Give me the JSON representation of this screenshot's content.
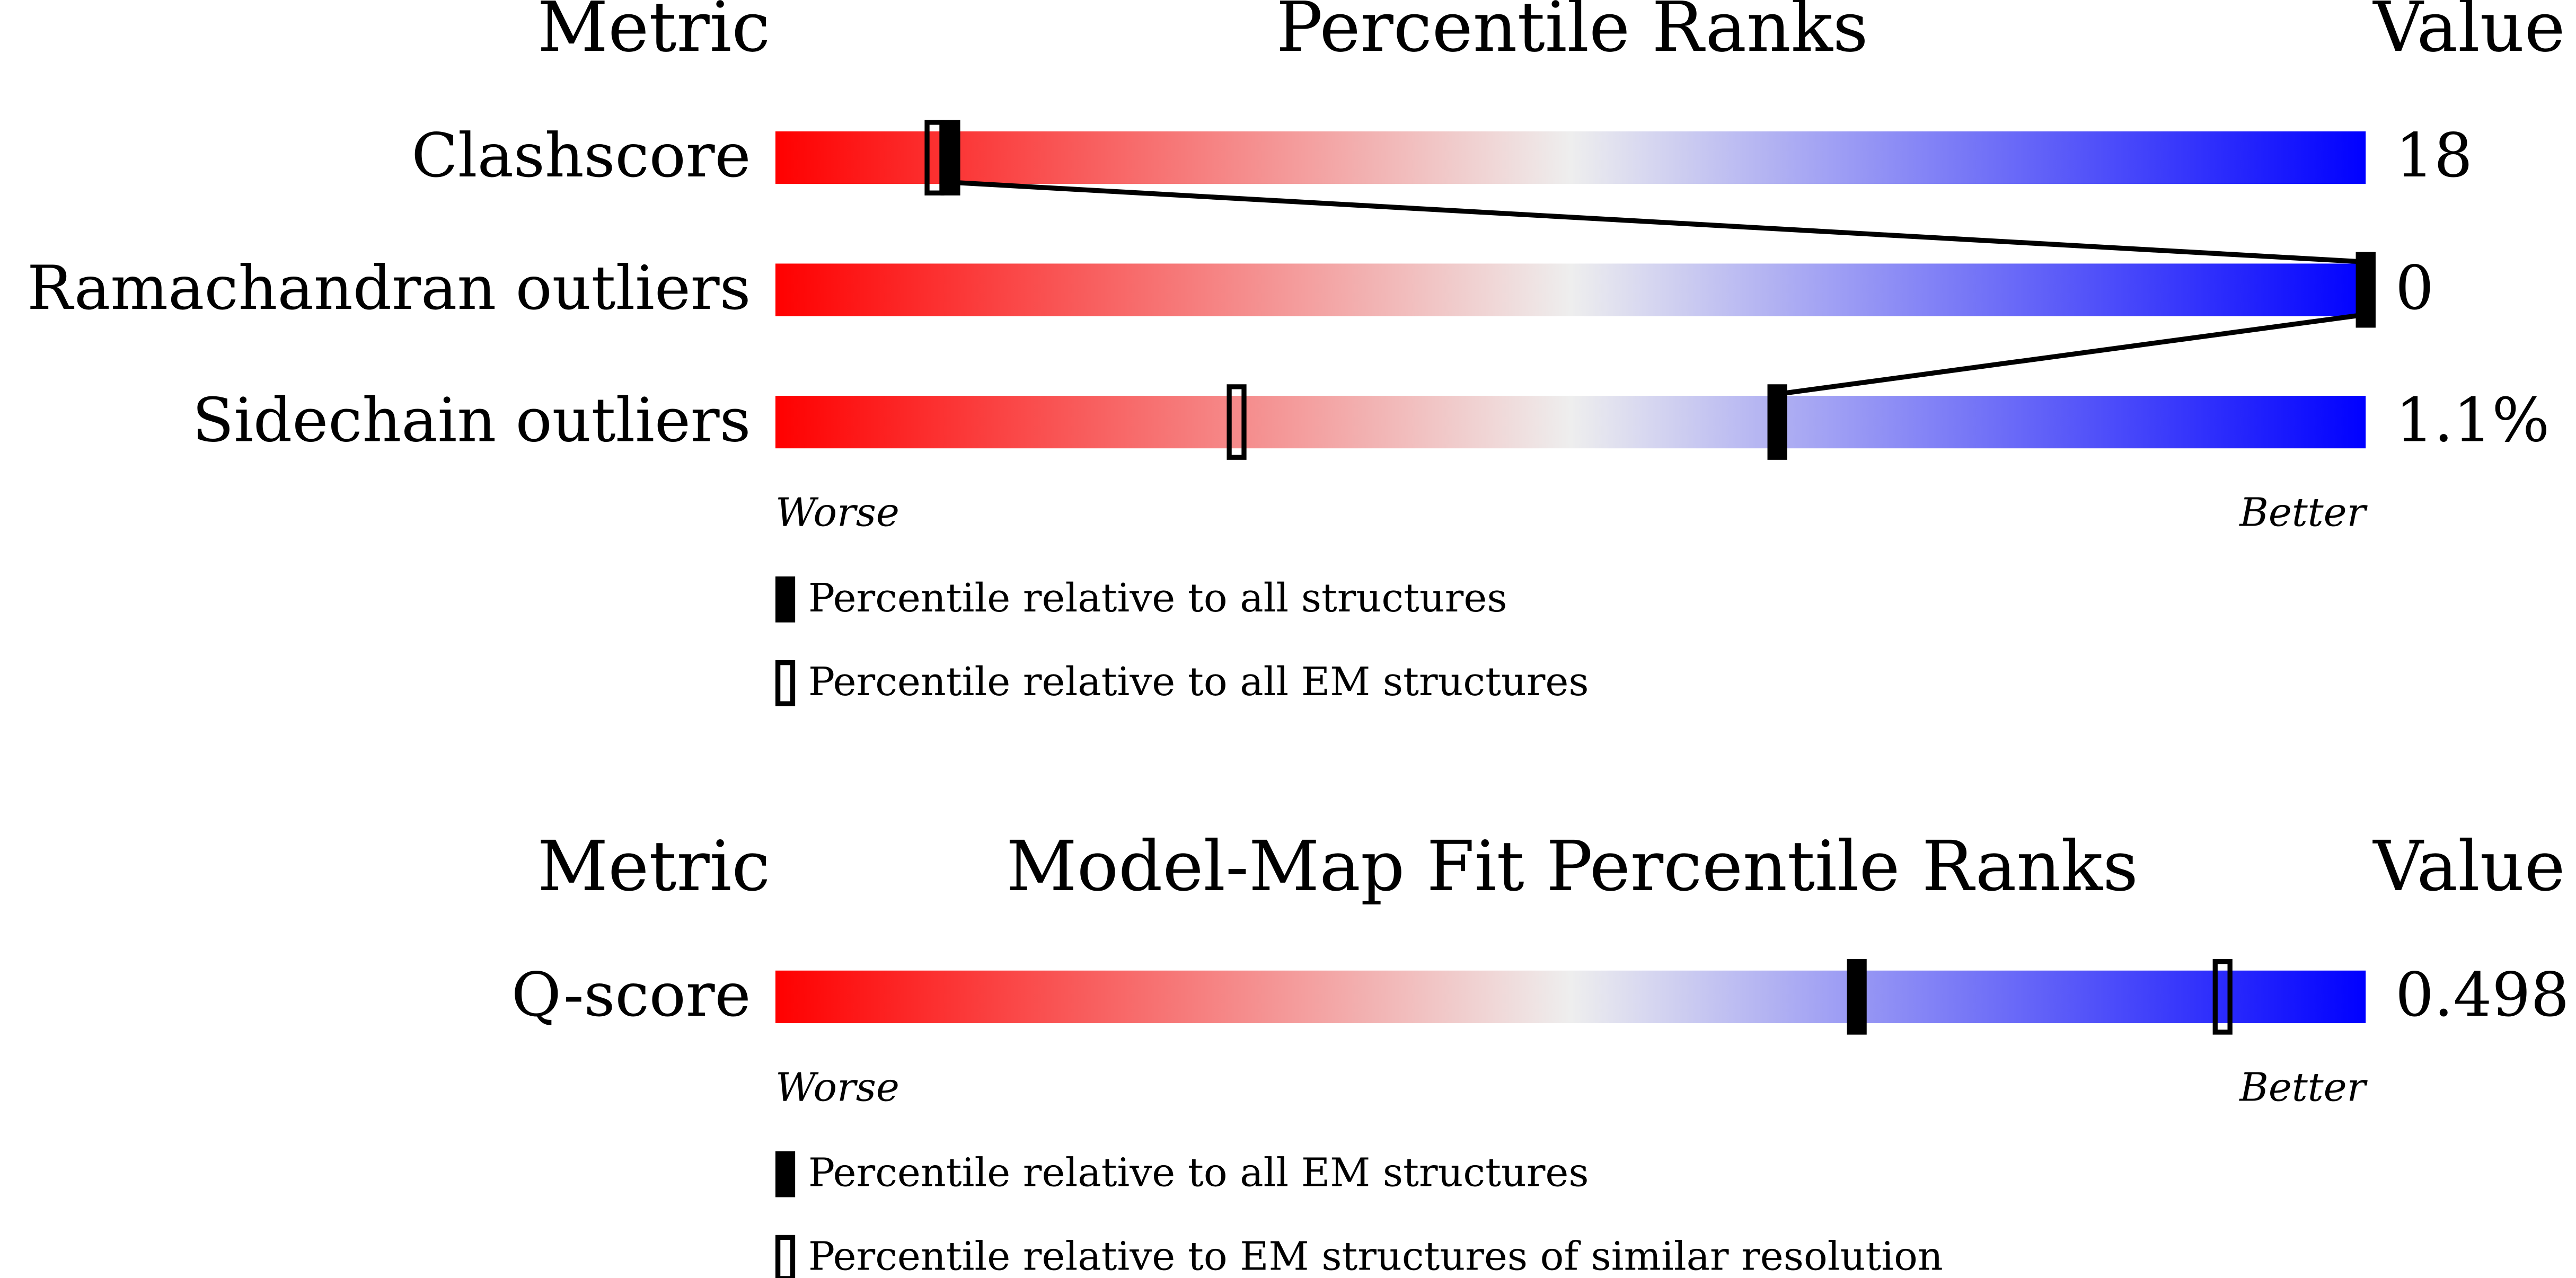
{
  "chart_data": [
    {
      "type": "percentile",
      "headers": {
        "metric": "Metric",
        "title": "Percentile Ranks",
        "value": "Value"
      },
      "metrics": [
        "Clashscore",
        "Ramachandran outliers",
        "Sidechain outliers"
      ],
      "value_labels": [
        "18",
        "0",
        "1.1%"
      ],
      "series": [
        {
          "name": "Percentile relative to all structures",
          "style": "filled",
          "color": "#000000",
          "values": [
            11,
            100,
            63
          ]
        },
        {
          "name": "Percentile relative to all EM structures",
          "style": "outline",
          "color": "#000000",
          "values": [
            10,
            100,
            29
          ]
        }
      ],
      "xlim": [
        0,
        100
      ],
      "low_label": "Worse",
      "high_label": "Better",
      "gradient": [
        "#ff0000",
        "#eeeeee",
        "#0000ff"
      ]
    },
    {
      "type": "percentile",
      "headers": {
        "metric": "Metric",
        "title": "Model-Map Fit Percentile Ranks",
        "value": "Value"
      },
      "metrics": [
        "Q-score"
      ],
      "value_labels": [
        "0.498"
      ],
      "series": [
        {
          "name": "Percentile relative to all EM structures",
          "style": "filled",
          "color": "#000000",
          "values": [
            68
          ]
        },
        {
          "name": "Percentile relative to EM structures of similar resolution",
          "style": "outline",
          "color": "#000000",
          "values": [
            91
          ]
        }
      ],
      "xlim": [
        0,
        100
      ],
      "low_label": "Worse",
      "high_label": "Better",
      "gradient": [
        "#ff0000",
        "#eeeeee",
        "#0000ff"
      ]
    }
  ]
}
